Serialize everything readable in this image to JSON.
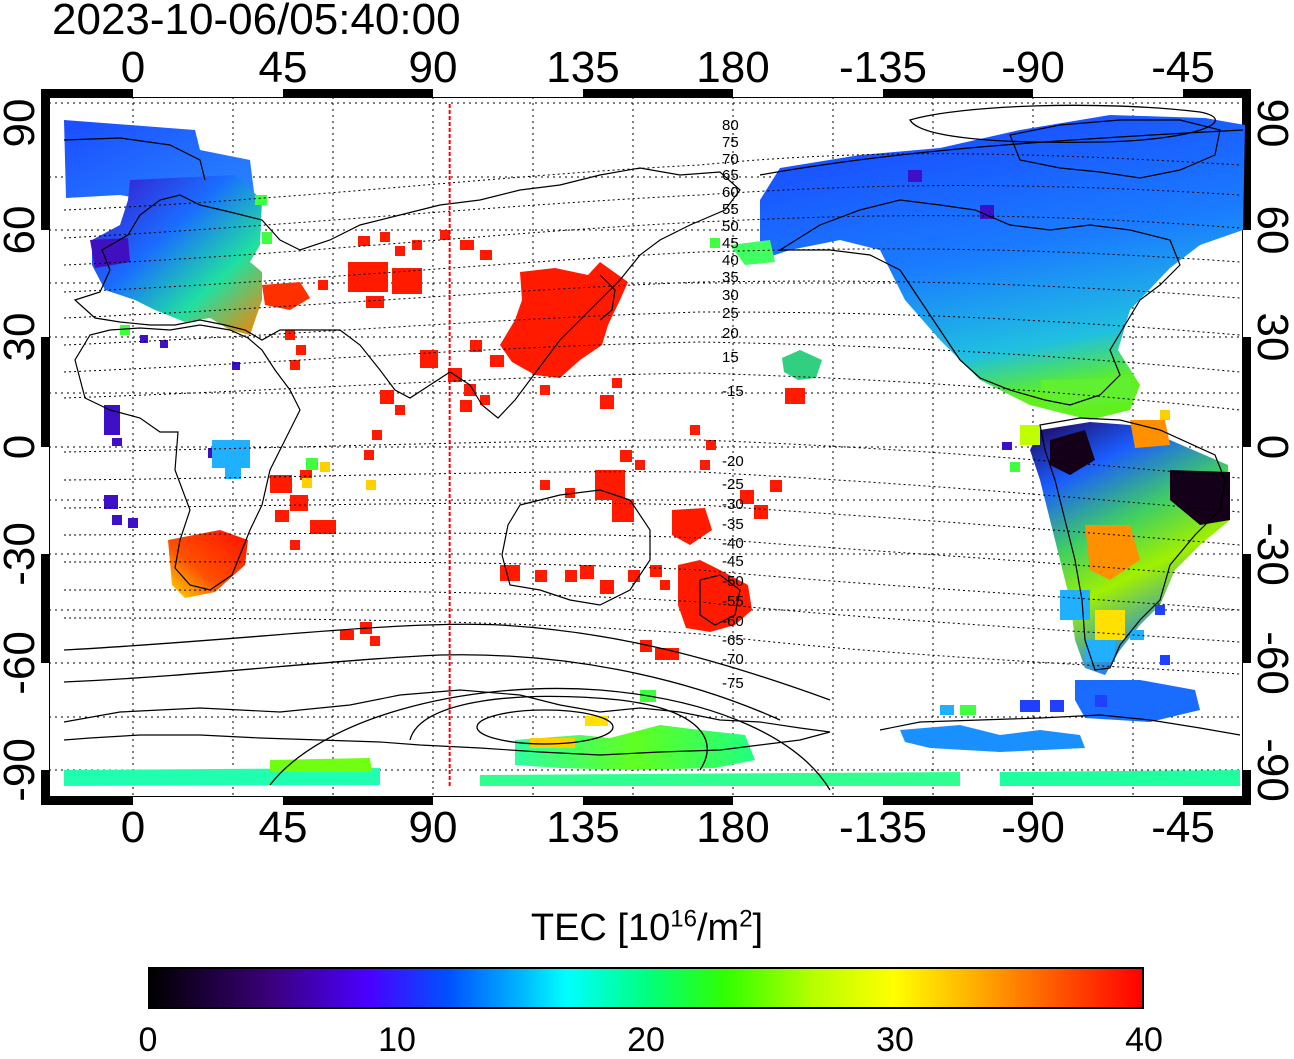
{
  "timestamp": "2023-10-06/05:40:00",
  "map": {
    "x_ticks_top": [
      "0",
      "45",
      "90",
      "135",
      "180",
      "-135",
      "-90",
      "-45"
    ],
    "x_ticks_bottom": [
      "0",
      "45",
      "90",
      "135",
      "180",
      "-135",
      "-90",
      "-45"
    ],
    "y_ticks_left": [
      "90",
      "60",
      "30",
      "0",
      "-30",
      "-60",
      "-90"
    ],
    "y_ticks_right": [
      "90",
      "60",
      "30",
      "0",
      "-30",
      "-60",
      "-90"
    ],
    "contour_labels": [
      "80",
      "75",
      "70",
      "65",
      "60",
      "55",
      "50",
      "45",
      "40",
      "35",
      "30",
      "25",
      "20",
      "15",
      "-15",
      "-20",
      "-25",
      "-30",
      "-35",
      "-40",
      "-45",
      "-50",
      "-55",
      "-60",
      "-65",
      "-70",
      "-75"
    ],
    "marker_longitude": 95,
    "colors": {
      "marker": "#ff0000",
      "grid": "#000000",
      "coast": "#000000"
    }
  },
  "colorbar": {
    "title_main": "TEC  [10",
    "title_sup1": "16",
    "title_mid": "/m",
    "title_sup2": "2",
    "title_end": "]",
    "ticks": [
      "0",
      "10",
      "20",
      "30",
      "40"
    ],
    "range": [
      0,
      40
    ]
  }
}
